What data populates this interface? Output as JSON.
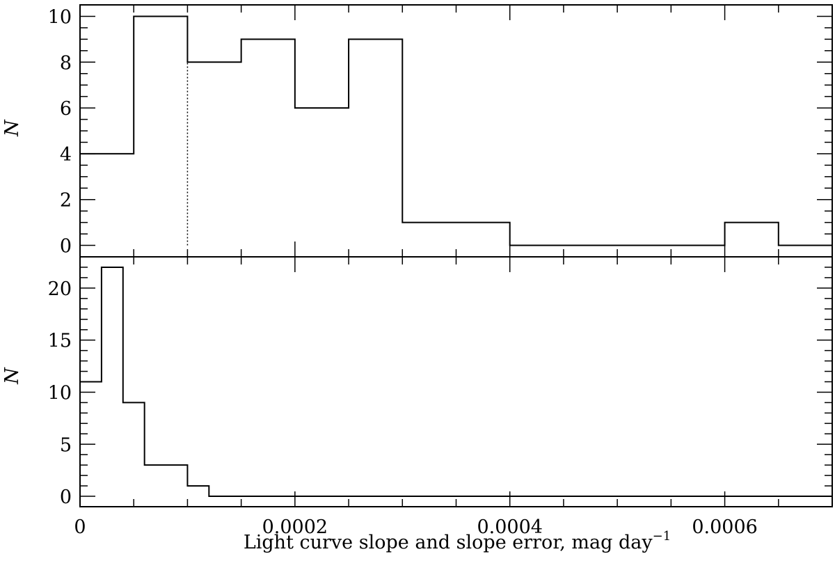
{
  "chart_data": [
    {
      "type": "histogram",
      "panel": "top",
      "ylabel": "N",
      "xlim": [
        0,
        0.0007
      ],
      "ylim": [
        -0.5,
        10.5
      ],
      "x_ticks": [
        "0",
        "0.0002",
        "0.0004",
        "0.0006"
      ],
      "y_ticks": [
        "0",
        "2",
        "4",
        "6",
        "8",
        "10"
      ],
      "bin_edges": [
        0,
        5e-05,
        0.0001,
        0.00015,
        0.0002,
        0.00025,
        0.0003,
        0.00035,
        0.0004,
        0.00045,
        0.0005,
        0.00055,
        0.0006,
        0.00065,
        0.0007
      ],
      "values": [
        4,
        10,
        8,
        9,
        6,
        9,
        1,
        1,
        0,
        0,
        0,
        0,
        1,
        0
      ],
      "annotations": [
        {
          "type": "dotted-vertical-line",
          "x": 0.0001,
          "from_y": 0,
          "to_y": 8
        }
      ]
    },
    {
      "type": "histogram",
      "panel": "bottom",
      "ylabel": "N",
      "xlabel": "Light curve slope and slope error, mag day",
      "xlabel_superscript": "−1",
      "xlim": [
        0,
        0.0007
      ],
      "ylim": [
        -1,
        23
      ],
      "x_ticks": [
        "0",
        "0.0002",
        "0.0004",
        "0.0006"
      ],
      "y_ticks": [
        "0",
        "5",
        "10",
        "15",
        "20"
      ],
      "bin_edges": [
        0,
        2e-05,
        4e-05,
        6e-05,
        8e-05,
        0.0001,
        0.00012,
        0.0007
      ],
      "values": [
        11,
        22,
        9,
        3,
        3,
        1,
        0
      ]
    }
  ]
}
